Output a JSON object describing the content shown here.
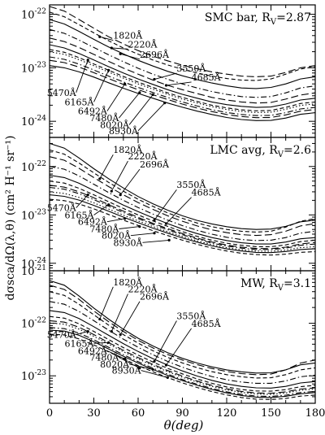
{
  "figure": {
    "ylabel": "dσsca/dΩ(λ,θ) (cm² H⁻¹ sr⁻¹)",
    "xlabel": "θ(deg)"
  },
  "chart_data": [
    {
      "type": "line",
      "panel": "top",
      "title": "SMC bar, R_V=2.87",
      "xlim": [
        0,
        180
      ],
      "ylim": [
        5e-25,
        1.5e-22
      ],
      "yscale": "log",
      "x_ticks": [
        0,
        30,
        60,
        90,
        120,
        150,
        180
      ],
      "y_ticks": [
        1e-24,
        1e-23,
        1e-22
      ],
      "y_tick_labels": [
        "10^-24",
        "10^-23",
        "10^-22"
      ],
      "x": [
        0,
        10,
        20,
        30,
        40,
        50,
        60,
        70,
        80,
        90,
        100,
        110,
        120,
        130,
        140,
        150,
        160,
        170,
        180
      ],
      "series": [
        {
          "name": "1820Å",
          "style": "dash-long",
          "values": [
            1.4e-22,
            1.15e-22,
            8e-23,
            5.5e-23,
            3.8e-23,
            2.8e-23,
            2.1e-23,
            1.65e-23,
            1.35e-23,
            1.12e-23,
            9.6e-24,
            8.4e-24,
            7.6e-24,
            7e-24,
            6.8e-24,
            7e-24,
            8.2e-24,
            1e-23,
            1.1e-23
          ]
        },
        {
          "name": "2220Å",
          "style": "dash",
          "values": [
            1.1e-22,
            9e-23,
            6.4e-23,
            4.5e-23,
            3.2e-23,
            2.35e-23,
            1.8e-23,
            1.4e-23,
            1.13e-23,
            9.4e-24,
            8e-24,
            7e-24,
            6.3e-24,
            5.9e-24,
            5.8e-24,
            6.2e-24,
            7.6e-24,
            9.5e-24,
            1.05e-23
          ]
        },
        {
          "name": "2696Å",
          "style": "solid",
          "values": [
            8e-23,
            6.6e-23,
            4.8e-23,
            3.4e-23,
            2.45e-23,
            1.82e-23,
            1.38e-23,
            1.08e-23,
            8.6e-24,
            7.1e-24,
            6e-24,
            5.2e-24,
            4.6e-24,
            4.2e-24,
            4.1e-24,
            4.3e-24,
            5e-24,
            6.2e-24,
            6.8e-24
          ]
        },
        {
          "name": "3550Å",
          "style": "dash-dot",
          "values": [
            5.2e-23,
            4.4e-23,
            3.3e-23,
            2.4e-23,
            1.75e-23,
            1.3e-23,
            9.8e-24,
            7.6e-24,
            6.1e-24,
            5e-24,
            4.2e-24,
            3.6e-24,
            3.2e-24,
            2.9e-24,
            2.8e-24,
            2.9e-24,
            3.4e-24,
            4.2e-24,
            4.6e-24
          ]
        },
        {
          "name": "4685Å",
          "style": "dash-long",
          "values": [
            3.6e-23,
            3.1e-23,
            2.4e-23,
            1.78e-23,
            1.32e-23,
            9.9e-24,
            7.6e-24,
            5.9e-24,
            4.7e-24,
            3.9e-24,
            3.3e-24,
            2.8e-24,
            2.5e-24,
            2.3e-24,
            2.2e-24,
            2.25e-24,
            2.6e-24,
            3.1e-24,
            3.4e-24
          ]
        },
        {
          "name": "5470Å",
          "style": "solid",
          "values": [
            2.7e-23,
            2.35e-23,
            1.85e-23,
            1.4e-23,
            1.05e-23,
            8e-24,
            6.2e-24,
            4.9e-24,
            3.9e-24,
            3.2e-24,
            2.7e-24,
            2.3e-24,
            2.05e-24,
            1.9e-24,
            1.82e-24,
            1.85e-24,
            2.1e-24,
            2.5e-24,
            2.7e-24
          ]
        },
        {
          "name": "6165Å",
          "style": "dash",
          "values": [
            2.2e-23,
            1.95e-23,
            1.55e-23,
            1.18e-23,
            9e-24,
            6.9e-24,
            5.4e-24,
            4.3e-24,
            3.4e-24,
            2.8e-24,
            2.35e-24,
            2e-24,
            1.78e-24,
            1.64e-24,
            1.57e-24,
            1.6e-24,
            1.82e-24,
            2.15e-24,
            2.3e-24
          ]
        },
        {
          "name": "6492Å",
          "style": "dot",
          "values": [
            2e-23,
            1.78e-23,
            1.42e-23,
            1.09e-23,
            8.3e-24,
            6.4e-24,
            5e-24,
            4e-24,
            3.2e-24,
            2.6e-24,
            2.2e-24,
            1.88e-24,
            1.66e-24,
            1.53e-24,
            1.46e-24,
            1.48e-24,
            1.68e-24,
            1.98e-24,
            2.12e-24
          ]
        },
        {
          "name": "7480Å",
          "style": "dash-dot",
          "values": [
            1.6e-23,
            1.44e-23,
            1.17e-23,
            9.1e-24,
            7e-24,
            5.45e-24,
            4.3e-24,
            3.45e-24,
            2.8e-24,
            2.3e-24,
            1.93e-24,
            1.65e-24,
            1.46e-24,
            1.34e-24,
            1.28e-24,
            1.29e-24,
            1.45e-24,
            1.7e-24,
            1.82e-24
          ]
        },
        {
          "name": "8020Å",
          "style": "dash-long",
          "values": [
            1.38e-23,
            1.25e-23,
            1.03e-23,
            8.1e-24,
            6.3e-24,
            4.9e-24,
            3.9e-24,
            3.14e-24,
            2.55e-24,
            2.1e-24,
            1.77e-24,
            1.52e-24,
            1.34e-24,
            1.23e-24,
            1.17e-24,
            1.18e-24,
            1.32e-24,
            1.55e-24,
            1.66e-24
          ]
        },
        {
          "name": "8930Å",
          "style": "solid",
          "values": [
            1.1e-23,
            1e-23,
            8.4e-24,
            6.7e-24,
            5.25e-24,
            4.15e-24,
            3.32e-24,
            2.7e-24,
            2.2e-24,
            1.83e-24,
            1.55e-24,
            1.34e-24,
            1.18e-24,
            1.08e-24,
            1.03e-24,
            1.04e-24,
            1.15e-24,
            1.35e-24,
            1.45e-24
          ]
        }
      ]
    },
    {
      "type": "line",
      "panel": "middle",
      "title": "LMC avg, R_V=2.6",
      "xlim": [
        0,
        180
      ],
      "ylim": [
        7e-25,
        4e-22
      ],
      "yscale": "log",
      "x_ticks": [
        0,
        30,
        60,
        90,
        120,
        150,
        180
      ],
      "y_ticks": [
        1e-24,
        1e-23,
        1e-22
      ],
      "y_tick_labels": [
        "10^-24",
        "10^-23",
        "10^-22"
      ],
      "x": [
        0,
        10,
        20,
        30,
        40,
        50,
        60,
        70,
        80,
        90,
        100,
        110,
        120,
        130,
        140,
        150,
        160,
        170,
        180
      ],
      "series": [
        {
          "name": "1820Å",
          "style": "solid",
          "values": [
            3e-22,
            2.4e-22,
            1.5e-22,
            9e-23,
            5.6e-23,
            3.6e-23,
            2.4e-23,
            1.7e-23,
            1.25e-23,
            9.6e-24,
            7.7e-24,
            6.5e-24,
            5.7e-24,
            5.2e-24,
            5e-24,
            5.1e-24,
            5.8e-24,
            7.2e-24,
            7.8e-24
          ]
        },
        {
          "name": "2220Å",
          "style": "dash",
          "values": [
            2.2e-22,
            1.8e-22,
            1.18e-22,
            7.4e-23,
            4.7e-23,
            3.1e-23,
            2.1e-23,
            1.5e-23,
            1.1e-23,
            8.5e-24,
            6.8e-24,
            5.7e-24,
            5e-24,
            4.6e-24,
            4.4e-24,
            4.6e-24,
            5.6e-24,
            7.4e-24,
            8.4e-24
          ]
        },
        {
          "name": "2696Å",
          "style": "dash-long",
          "values": [
            1.6e-22,
            1.35e-22,
            9.2e-23,
            5.9e-23,
            3.85e-23,
            2.6e-23,
            1.8e-23,
            1.3e-23,
            9.6e-24,
            7.4e-24,
            5.9e-24,
            4.9e-24,
            4.3e-24,
            3.9e-24,
            3.75e-24,
            3.9e-24,
            4.6e-24,
            5.9e-24,
            6.6e-24
          ]
        },
        {
          "name": "3550Å",
          "style": "dash-dot",
          "values": [
            1e-22,
            8.8e-23,
            6.4e-23,
            4.3e-23,
            2.9e-23,
            2e-23,
            1.42e-23,
            1.04e-23,
            7.8e-24,
            6e-24,
            4.8e-24,
            4e-24,
            3.45e-24,
            3.1e-24,
            2.95e-24,
            3e-24,
            3.4e-24,
            4.2e-24,
            4.6e-24
          ]
        },
        {
          "name": "4685Å",
          "style": "solid",
          "values": [
            6.6e-23,
            5.9e-23,
            4.5e-23,
            3.2e-23,
            2.25e-23,
            1.6e-23,
            1.17e-23,
            8.7e-24,
            6.6e-24,
            5.1e-24,
            4.1e-24,
            3.4e-24,
            2.95e-24,
            2.65e-24,
            2.5e-24,
            2.5e-24,
            2.75e-24,
            3.2e-24,
            3.4e-24
          ]
        },
        {
          "name": "5470Å",
          "style": "dash",
          "values": [
            5e-23,
            4.55e-23,
            3.55e-23,
            2.6e-23,
            1.87e-23,
            1.36e-23,
            1e-23,
            7.5e-24,
            5.8e-24,
            4.5e-24,
            3.6e-24,
            3e-24,
            2.6e-24,
            2.35e-24,
            2.2e-24,
            2.2e-24,
            2.4e-24,
            2.8e-24,
            3e-24
          ]
        },
        {
          "name": "6165Å",
          "style": "dash-long",
          "values": [
            4.1e-23,
            3.75e-23,
            3e-23,
            2.25e-23,
            1.63e-23,
            1.2e-23,
            8.9e-24,
            6.7e-24,
            5.2e-24,
            4.1e-24,
            3.3e-24,
            2.75e-24,
            2.38e-24,
            2.15e-24,
            2.02e-24,
            2e-24,
            2.15e-24,
            2.5e-24,
            2.7e-24
          ]
        },
        {
          "name": "6492Å",
          "style": "dash-dot",
          "values": [
            3.7e-23,
            3.4e-23,
            2.75e-23,
            2.07e-23,
            1.52e-23,
            1.12e-23,
            8.4e-24,
            6.35e-24,
            4.95e-24,
            3.9e-24,
            3.15e-24,
            2.62e-24,
            2.27e-24,
            2.05e-24,
            1.93e-24,
            1.92e-24,
            2.05e-24,
            2.35e-24,
            2.5e-24
          ]
        },
        {
          "name": "7480Å",
          "style": "dot",
          "values": [
            3e-23,
            2.78e-23,
            2.3e-23,
            1.77e-23,
            1.32e-23,
            9.9e-24,
            7.5e-24,
            5.75e-24,
            4.5e-24,
            3.58e-24,
            2.9e-24,
            2.43e-24,
            2.1e-24,
            1.9e-24,
            1.79e-24,
            1.77e-24,
            1.88e-24,
            2.1e-24,
            2.2e-24
          ]
        },
        {
          "name": "8020Å",
          "style": "solid",
          "values": [
            2.6e-23,
            2.42e-23,
            2.02e-23,
            1.57e-23,
            1.19e-23,
            9e-24,
            6.9e-24,
            5.32e-24,
            4.2e-24,
            3.35e-24,
            2.73e-24,
            2.29e-24,
            1.98e-24,
            1.79e-24,
            1.68e-24,
            1.66e-24,
            1.75e-24,
            1.92e-24,
            2e-24
          ]
        },
        {
          "name": "8930Å",
          "style": "dash",
          "values": [
            2.1e-23,
            1.97e-23,
            1.68e-23,
            1.33e-23,
            1.02e-23,
            7.8e-24,
            6.05e-24,
            4.72e-24,
            3.74e-24,
            3e-24,
            2.46e-24,
            2.07e-24,
            1.79e-24,
            1.61e-24,
            1.51e-24,
            1.48e-24,
            1.54e-24,
            1.68e-24,
            1.74e-24
          ]
        }
      ]
    },
    {
      "type": "line",
      "panel": "bottom",
      "title": "MW, R_V=3.1",
      "xlim": [
        0,
        180
      ],
      "ylim": [
        3e-24,
        1e-21
      ],
      "yscale": "log",
      "x_ticks": [
        0,
        30,
        60,
        90,
        120,
        150,
        180
      ],
      "x_tick_labels": [
        "0",
        "30",
        "60",
        "90",
        "120",
        "150",
        "180"
      ],
      "y_ticks": [
        1e-23,
        1e-22,
        1e-21
      ],
      "y_tick_labels": [
        "10^-23",
        "10^-22",
        "10^-21"
      ],
      "x": [
        0,
        10,
        20,
        30,
        40,
        50,
        60,
        70,
        80,
        90,
        100,
        110,
        120,
        130,
        140,
        150,
        160,
        170,
        180
      ],
      "series": [
        {
          "name": "1820Å",
          "style": "solid",
          "values": [
            6.5e-22,
            5.3e-22,
            3.3e-22,
            1.95e-22,
            1.2e-22,
            7.7e-23,
            5.2e-23,
            3.7e-23,
            2.75e-23,
            2.15e-23,
            1.75e-23,
            1.48e-23,
            1.3e-23,
            1.19e-23,
            1.13e-23,
            1.14e-23,
            1.3e-23,
            1.62e-23,
            1.76e-23
          ]
        },
        {
          "name": "2220Å",
          "style": "dash-long",
          "values": [
            5.3e-22,
            4.4e-22,
            2.85e-22,
            1.72e-22,
            1.07e-22,
            7e-23,
            4.75e-23,
            3.4e-23,
            2.55e-23,
            2e-23,
            1.63e-23,
            1.38e-23,
            1.21e-23,
            1.1e-23,
            1.05e-23,
            1.08e-23,
            1.3e-23,
            1.75e-23,
            2e-23
          ]
        },
        {
          "name": "2696Å",
          "style": "dash",
          "values": [
            4e-22,
            3.4e-22,
            2.3e-22,
            1.45e-22,
            9.2e-23,
            6.1e-23,
            4.2e-23,
            3e-23,
            2.25e-23,
            1.76e-23,
            1.43e-23,
            1.2e-23,
            1.05e-23,
            9.6e-24,
            9.1e-24,
            9.2e-24,
            1.05e-23,
            1.3e-23,
            1.42e-23
          ]
        },
        {
          "name": "3550Å",
          "style": "dash-dot",
          "values": [
            2.6e-22,
            2.3e-22,
            1.68e-22,
            1.12e-22,
            7.4e-23,
            5e-23,
            3.5e-23,
            2.52e-23,
            1.88e-23,
            1.46e-23,
            1.17e-23,
            9.7e-24,
            8.4e-24,
            7.6e-24,
            7.2e-24,
            7.2e-24,
            8e-24,
            9.6e-24,
            1.03e-23
          ]
        },
        {
          "name": "4685Å",
          "style": "solid",
          "values": [
            1.75e-22,
            1.6e-22,
            1.23e-22,
            8.6e-23,
            5.9e-23,
            4.1e-23,
            2.9e-23,
            2.12e-23,
            1.6e-23,
            1.24e-23,
            9.9e-24,
            8.2e-24,
            7e-24,
            6.3e-24,
            5.9e-24,
            5.85e-24,
            6.3e-24,
            7.3e-24,
            7.8e-24
          ]
        },
        {
          "name": "5470Å",
          "style": "dash",
          "values": [
            1.35e-22,
            1.25e-22,
            9.8e-23,
            7e-23,
            4.9e-23,
            3.45e-23,
            2.48e-23,
            1.83e-23,
            1.39e-23,
            1.09e-23,
            8.7e-24,
            7.2e-24,
            6.15e-24,
            5.5e-24,
            5.15e-24,
            5.1e-24,
            5.45e-24,
            6.2e-24,
            6.6e-24
          ]
        },
        {
          "name": "6165Å",
          "style": "dash-long",
          "values": [
            1.12e-22,
            1.05e-22,
            8.4e-23,
            6.1e-23,
            4.3e-23,
            3.06e-23,
            2.22e-23,
            1.65e-23,
            1.26e-23,
            9.9e-24,
            7.95e-24,
            6.6e-24,
            5.65e-24,
            5.05e-24,
            4.72e-24,
            4.65e-24,
            4.95e-24,
            5.6e-24,
            5.9e-24
          ]
        },
        {
          "name": "6492Å",
          "style": "dot",
          "values": [
            1.02e-22,
            9.6e-23,
            7.75e-23,
            5.65e-23,
            4.02e-23,
            2.88e-23,
            2.1e-23,
            1.57e-23,
            1.2e-23,
            9.4e-24,
            7.6e-24,
            6.3e-24,
            5.4e-24,
            4.83e-24,
            4.5e-24,
            4.43e-24,
            4.7e-24,
            5.3e-24,
            5.6e-24
          ]
        },
        {
          "name": "7480Å",
          "style": "dash-dot",
          "values": [
            8.3e-23,
            7.9e-23,
            6.5e-23,
            4.85e-23,
            3.5e-23,
            2.53e-23,
            1.86e-23,
            1.4e-23,
            1.08e-23,
            8.5e-24,
            6.9e-24,
            5.75e-24,
            4.95e-24,
            4.42e-24,
            4.12e-24,
            4.05e-24,
            4.28e-24,
            4.8e-24,
            5.05e-24
          ]
        },
        {
          "name": "8020Å",
          "style": "solid",
          "values": [
            7.4e-23,
            7.1e-23,
            5.9e-23,
            4.45e-23,
            3.24e-23,
            2.36e-23,
            1.75e-23,
            1.32e-23,
            1.02e-23,
            8.1e-24,
            6.6e-24,
            5.5e-24,
            4.73e-24,
            4.23e-24,
            3.94e-24,
            3.87e-24,
            4.08e-24,
            4.55e-24,
            4.8e-24
          ]
        },
        {
          "name": "8930Å",
          "style": "dash",
          "values": [
            6.2e-23,
            6e-23,
            5.05e-23,
            3.88e-23,
            2.86e-23,
            2.1e-23,
            1.57e-23,
            1.19e-23,
            9.25e-24,
            7.35e-24,
            6e-24,
            5.02e-24,
            4.33e-24,
            3.87e-24,
            3.6e-24,
            3.53e-24,
            3.7e-24,
            4.1e-24,
            4.3e-24
          ]
        }
      ]
    }
  ],
  "annotation_labels": [
    "1820Å",
    "2220Å",
    "2696Å",
    "3550Å",
    "4685Å",
    "5470Å",
    "6165Å",
    "6492Å",
    "7480Å",
    "8020Å",
    "8930Å"
  ]
}
